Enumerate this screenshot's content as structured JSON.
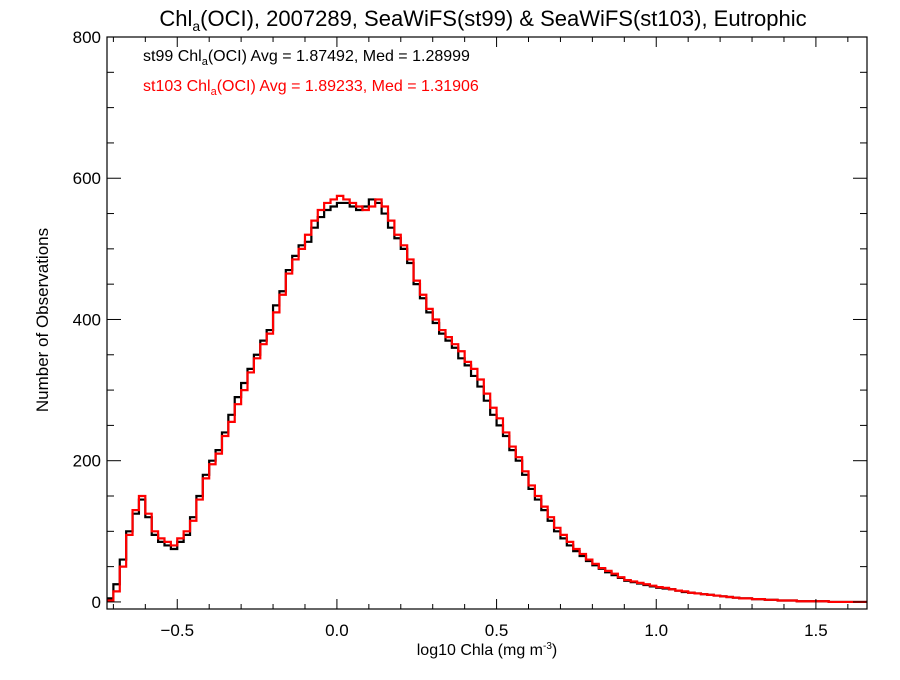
{
  "chart_data": {
    "type": "line",
    "step": true,
    "title": {
      "prefix": "Chl",
      "sub": "a",
      "suffix": "(OCI), 2007289, SeaWiFS(st99) & SeaWiFS(st103), Eutrophic"
    },
    "xlabel": {
      "prefix": "log10 Chla (mg m",
      "sup": "-3",
      "suffix": ")"
    },
    "ylabel": "Number of Observations",
    "xlim": [
      -0.72,
      1.66
    ],
    "ylim": [
      -10,
      800
    ],
    "xticks": [
      -0.5,
      0.0,
      0.5,
      1.0,
      1.5
    ],
    "xtick_labels": [
      "−0.5",
      "0.0",
      "0.5",
      "1.0",
      "1.5"
    ],
    "yticks": [
      0,
      200,
      400,
      600,
      800
    ],
    "ytick_labels": [
      "0",
      "200",
      "400",
      "600",
      "800"
    ],
    "grid": false,
    "legend": "top-left",
    "series": [
      {
        "name": "st99",
        "color": "#000000",
        "annotation": {
          "prefix": "st99 Chl",
          "sub": "a",
          "suffix": "(OCI) Avg = 1.87492, Med = 1.28999"
        },
        "x": [
          -0.72,
          -0.7,
          -0.68,
          -0.66,
          -0.64,
          -0.62,
          -0.6,
          -0.58,
          -0.56,
          -0.54,
          -0.52,
          -0.5,
          -0.48,
          -0.46,
          -0.44,
          -0.42,
          -0.4,
          -0.38,
          -0.36,
          -0.34,
          -0.32,
          -0.3,
          -0.28,
          -0.26,
          -0.24,
          -0.22,
          -0.2,
          -0.18,
          -0.16,
          -0.14,
          -0.12,
          -0.1,
          -0.08,
          -0.06,
          -0.04,
          -0.02,
          0.0,
          0.02,
          0.04,
          0.06,
          0.08,
          0.1,
          0.12,
          0.14,
          0.16,
          0.18,
          0.2,
          0.22,
          0.24,
          0.26,
          0.28,
          0.3,
          0.32,
          0.34,
          0.36,
          0.38,
          0.4,
          0.42,
          0.44,
          0.46,
          0.48,
          0.5,
          0.52,
          0.54,
          0.56,
          0.58,
          0.6,
          0.62,
          0.64,
          0.66,
          0.68,
          0.7,
          0.72,
          0.74,
          0.76,
          0.78,
          0.8,
          0.82,
          0.84,
          0.86,
          0.88,
          0.9,
          0.92,
          0.94,
          0.96,
          0.98,
          1.0,
          1.02,
          1.04,
          1.06,
          1.08,
          1.1,
          1.12,
          1.14,
          1.16,
          1.18,
          1.2,
          1.22,
          1.24,
          1.26,
          1.28,
          1.3,
          1.32,
          1.34,
          1.36,
          1.38,
          1.4,
          1.42,
          1.44,
          1.46,
          1.48,
          1.5,
          1.52,
          1.54,
          1.56,
          1.58,
          1.6,
          1.62,
          1.64
        ],
        "values": [
          5,
          25,
          60,
          100,
          125,
          145,
          120,
          95,
          85,
          80,
          75,
          85,
          95,
          120,
          150,
          180,
          200,
          215,
          240,
          265,
          290,
          310,
          330,
          350,
          370,
          385,
          420,
          440,
          470,
          490,
          505,
          510,
          530,
          545,
          555,
          560,
          565,
          565,
          560,
          555,
          560,
          570,
          565,
          550,
          530,
          515,
          500,
          480,
          450,
          430,
          410,
          395,
          380,
          370,
          360,
          345,
          335,
          320,
          305,
          285,
          265,
          250,
          235,
          215,
          200,
          180,
          160,
          145,
          130,
          115,
          100,
          90,
          80,
          72,
          65,
          58,
          52,
          47,
          42,
          38,
          34,
          30,
          28,
          26,
          24,
          22,
          20,
          19,
          18,
          16,
          14,
          13,
          12,
          11,
          10,
          9,
          8,
          7,
          6,
          5,
          5,
          4,
          4,
          3,
          3,
          2,
          2,
          2,
          1,
          1,
          1,
          1,
          1,
          0,
          0,
          0,
          0,
          0,
          0
        ]
      },
      {
        "name": "st103",
        "color": "#ff0000",
        "annotation": {
          "prefix": "st103 Chl",
          "sub": "a",
          "suffix": "(OCI) Avg = 1.89233, Med = 1.31906"
        },
        "x": [
          -0.72,
          -0.7,
          -0.68,
          -0.66,
          -0.64,
          -0.62,
          -0.6,
          -0.58,
          -0.56,
          -0.54,
          -0.52,
          -0.5,
          -0.48,
          -0.46,
          -0.44,
          -0.42,
          -0.4,
          -0.38,
          -0.36,
          -0.34,
          -0.32,
          -0.3,
          -0.28,
          -0.26,
          -0.24,
          -0.22,
          -0.2,
          -0.18,
          -0.16,
          -0.14,
          -0.12,
          -0.1,
          -0.08,
          -0.06,
          -0.04,
          -0.02,
          0.0,
          0.02,
          0.04,
          0.06,
          0.08,
          0.1,
          0.12,
          0.14,
          0.16,
          0.18,
          0.2,
          0.22,
          0.24,
          0.26,
          0.28,
          0.3,
          0.32,
          0.34,
          0.36,
          0.38,
          0.4,
          0.42,
          0.44,
          0.46,
          0.48,
          0.5,
          0.52,
          0.54,
          0.56,
          0.58,
          0.6,
          0.62,
          0.64,
          0.66,
          0.68,
          0.7,
          0.72,
          0.74,
          0.76,
          0.78,
          0.8,
          0.82,
          0.84,
          0.86,
          0.88,
          0.9,
          0.92,
          0.94,
          0.96,
          0.98,
          1.0,
          1.02,
          1.04,
          1.06,
          1.08,
          1.1,
          1.12,
          1.14,
          1.16,
          1.18,
          1.2,
          1.22,
          1.24,
          1.26,
          1.28,
          1.3,
          1.32,
          1.34,
          1.36,
          1.38,
          1.4,
          1.42,
          1.44,
          1.46,
          1.48,
          1.5,
          1.52,
          1.54,
          1.56,
          1.58,
          1.6,
          1.62,
          1.64
        ],
        "values": [
          2,
          15,
          50,
          95,
          130,
          150,
          125,
          100,
          90,
          85,
          80,
          90,
          100,
          115,
          145,
          175,
          195,
          210,
          235,
          255,
          280,
          300,
          325,
          345,
          365,
          380,
          410,
          435,
          465,
          485,
          500,
          520,
          540,
          555,
          565,
          570,
          575,
          570,
          565,
          560,
          555,
          560,
          570,
          560,
          540,
          520,
          505,
          485,
          455,
          435,
          415,
          400,
          385,
          375,
          365,
          355,
          340,
          330,
          315,
          295,
          275,
          260,
          240,
          220,
          205,
          185,
          165,
          150,
          135,
          120,
          105,
          95,
          85,
          75,
          68,
          60,
          54,
          48,
          44,
          40,
          35,
          31,
          29,
          27,
          25,
          23,
          21,
          20,
          18,
          16,
          15,
          13,
          12,
          11,
          10,
          9,
          8,
          7,
          6,
          5,
          5,
          4,
          4,
          3,
          3,
          2,
          2,
          2,
          1,
          1,
          1,
          1,
          1,
          0,
          0,
          0,
          0,
          0,
          0
        ]
      }
    ]
  }
}
